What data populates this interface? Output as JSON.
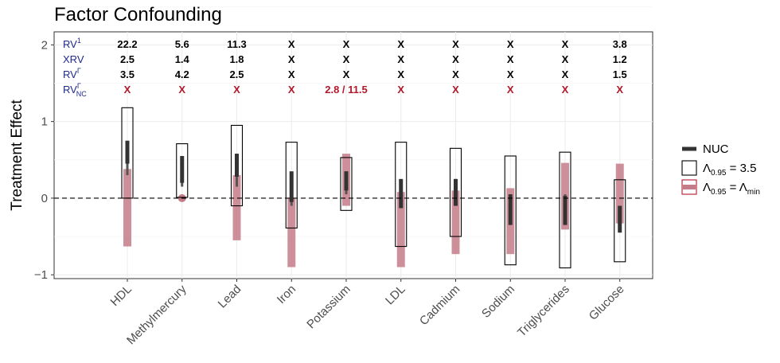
{
  "chart_data": {
    "type": "interval",
    "title": "Factor Confounding",
    "xlabel": "",
    "ylabel": "Treatment Effect",
    "ylim": [
      -1.05,
      2.17
    ],
    "yticks": [
      "2",
      "1",
      "0",
      "−1"
    ],
    "ytick_values": [
      2,
      1,
      0,
      -1
    ],
    "reference_line": 0,
    "categories": [
      "HDL",
      "Methylmercury",
      "Lead",
      "Iron",
      "Potassium",
      "LDL",
      "Cadmium",
      "Sodium",
      "Triglycerides",
      "Glucose"
    ],
    "series": [
      {
        "name": "NUC",
        "color": "#333333",
        "inner": [
          [
            0.45,
            0.75
          ],
          [
            0.2,
            0.55
          ],
          [
            0.28,
            0.58
          ],
          [
            -0.05,
            0.35
          ],
          [
            0.1,
            0.35
          ],
          [
            -0.13,
            0.25
          ],
          [
            -0.1,
            0.25
          ],
          [
            -0.35,
            0.05
          ],
          [
            -0.35,
            0.03
          ],
          [
            -0.45,
            -0.1
          ]
        ],
        "outer": [
          [
            0.3,
            0.7
          ],
          [
            0.15,
            0.5
          ],
          [
            0.15,
            0.58
          ],
          [
            -0.1,
            0.3
          ],
          [
            0.05,
            0.35
          ],
          [
            -0.12,
            0.23
          ],
          [
            -0.1,
            0.25
          ],
          [
            -0.3,
            0.05
          ],
          [
            -0.3,
            0.05
          ],
          [
            -0.4,
            -0.15
          ]
        ]
      },
      {
        "name": "Λ0.95 = 3.5",
        "color": "#000000",
        "intervals": [
          [
            0.0,
            1.18
          ],
          [
            0.01,
            0.71
          ],
          [
            -0.1,
            0.95
          ],
          [
            -0.39,
            0.73
          ],
          [
            -0.16,
            0.53
          ],
          [
            -0.63,
            0.73
          ],
          [
            -0.5,
            0.65
          ],
          [
            -0.87,
            0.55
          ],
          [
            -0.91,
            0.6
          ],
          [
            -0.83,
            0.24
          ]
        ]
      },
      {
        "name": "Λ0.95 = Λmin",
        "color": "#c47c89",
        "intervals": [
          [
            -0.63,
            0.38
          ],
          [
            0.0,
            0.0
          ],
          [
            -0.55,
            0.3
          ],
          [
            -0.9,
            0.0
          ],
          [
            -0.1,
            0.58
          ],
          [
            -0.9,
            0.08
          ],
          [
            -0.73,
            0.1
          ],
          [
            -0.73,
            0.13
          ],
          [
            -0.41,
            0.46
          ],
          [
            -0.33,
            0.45
          ]
        ],
        "point_only": [
          false,
          true,
          false,
          false,
          false,
          false,
          false,
          false,
          false,
          false
        ]
      }
    ],
    "legend": {
      "position": "right",
      "entries": [
        {
          "label": "NUC",
          "sub": ""
        },
        {
          "label": "Λ",
          "sub": "0.95",
          "rest": " = 3.5"
        },
        {
          "label": "Λ",
          "sub": "0.95",
          "rest": " = Λ",
          "sub2": "min"
        }
      ]
    },
    "rv_table": {
      "row_labels": [
        {
          "base": "RV",
          "sup": "1",
          "sub": ""
        },
        {
          "base": "XRV",
          "sup": "",
          "sub": ""
        },
        {
          "base": "RV",
          "sup": "Γ",
          "sub": ""
        },
        {
          "base": "RV",
          "sup": "Γ",
          "sub": "NC"
        }
      ],
      "rows": [
        [
          "22.2",
          "5.6",
          "11.3",
          "X",
          "X",
          "X",
          "X",
          "X",
          "X",
          "3.8"
        ],
        [
          "2.5",
          "1.4",
          "1.8",
          "X",
          "X",
          "X",
          "X",
          "X",
          "X",
          "1.2"
        ],
        [
          "3.5",
          "4.2",
          "2.5",
          "X",
          "X",
          "X",
          "X",
          "X",
          "X",
          "1.5"
        ],
        [
          "X",
          "X",
          "X",
          "X",
          "2.8 / 11.5",
          "X",
          "X",
          "X",
          "X",
          "X"
        ]
      ],
      "row_colors": [
        "#000000",
        "#000000",
        "#000000",
        "#b2182b"
      ]
    }
  }
}
